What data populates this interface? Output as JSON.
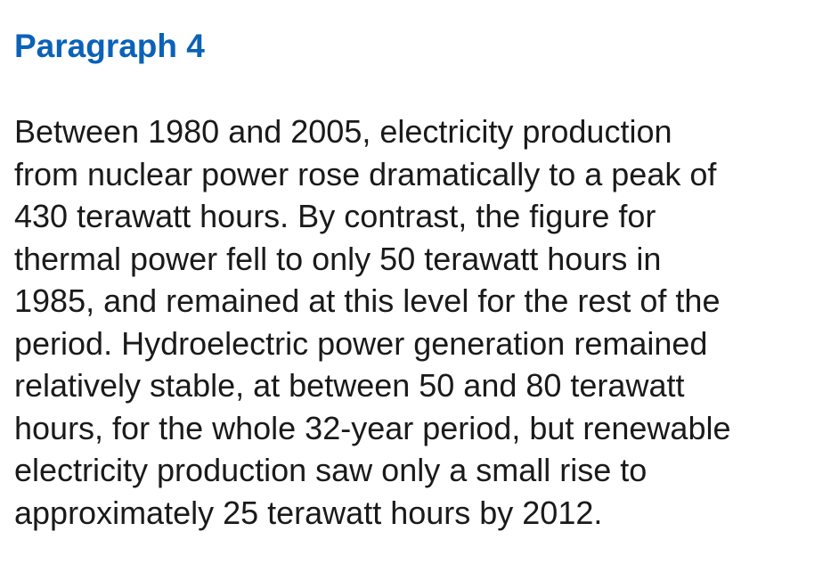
{
  "heading": "Paragraph 4",
  "paragraph_lines": [
    "Between 1980 and 2005, electricity production",
    "from nuclear power rose dramatically to a peak of",
    "430 terawatt hours. By contrast, the figure for",
    "thermal power fell to only 50 terawatt hours in",
    "1985, and remained at this level for the rest of the",
    "period. Hydroelectric power generation remained",
    "relatively stable, at between 50 and 80 terawatt",
    "hours, for the whole 32-year period, but renewable",
    "electricity production saw only a small rise to",
    "approximately 25 terawatt hours by 2012."
  ],
  "colors": {
    "heading": "#0b62b8",
    "text": "#1a1a1a",
    "background": "#ffffff"
  }
}
